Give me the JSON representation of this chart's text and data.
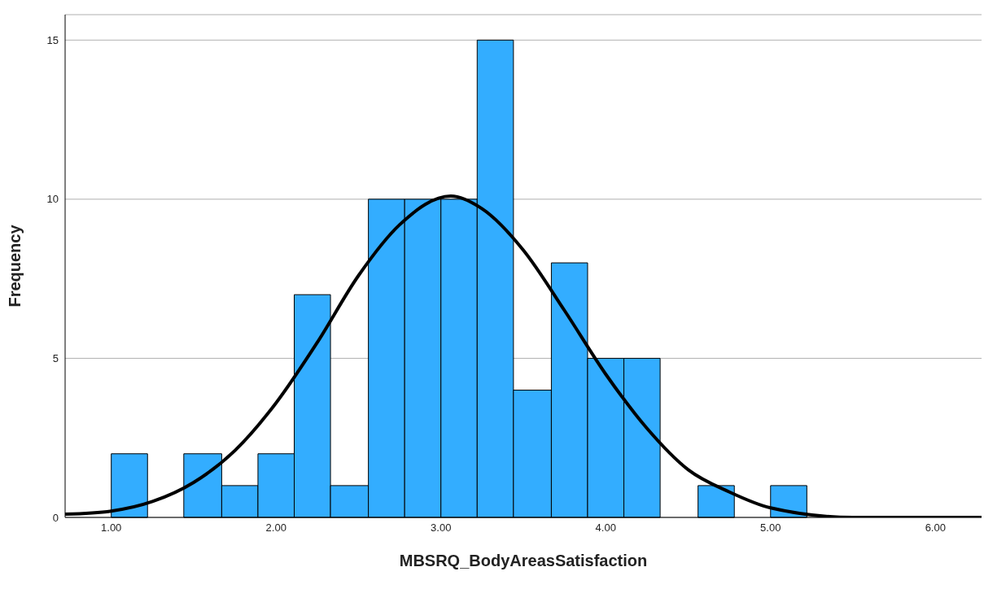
{
  "chart_data": {
    "type": "histogram",
    "xlabel": "MBSRQ_BodyAreasSatisfaction",
    "ylabel": "Frequency",
    "bins": [
      1.0,
      1.22,
      1.44,
      1.67,
      1.89,
      2.11,
      2.33,
      2.56,
      2.78,
      3.0,
      3.22,
      3.44,
      3.67,
      3.89,
      4.11,
      4.33,
      4.56,
      4.78,
      5.0,
      5.22
    ],
    "values": [
      2,
      0,
      2,
      1,
      2,
      7,
      1,
      10,
      10,
      10,
      15,
      4,
      8,
      5,
      5,
      0,
      1,
      0,
      1
    ],
    "color": "#33adff",
    "series": [
      {
        "type": "line",
        "color": "#000000",
        "x": [
          0.72,
          1.0,
          1.25,
          1.5,
          1.75,
          2.0,
          2.25,
          2.5,
          2.75,
          3.06,
          3.25,
          3.5,
          3.75,
          4.0,
          4.25,
          4.5,
          4.75,
          5.0,
          5.5,
          6.0,
          6.28
        ],
        "values": [
          0.1,
          0.2,
          0.5,
          1.1,
          2.1,
          3.6,
          5.5,
          7.6,
          9.2,
          10.1,
          9.7,
          8.4,
          6.5,
          4.5,
          2.8,
          1.5,
          0.8,
          0.3,
          0.0,
          0.0,
          0.0
        ]
      }
    ],
    "xlim": [
      0.72,
      6.28
    ],
    "xticks": [
      {
        "value": 1,
        "label": "1.00"
      },
      {
        "value": 2,
        "label": "2.00"
      },
      {
        "value": 3,
        "label": "3.00"
      },
      {
        "value": 4,
        "label": "4.00"
      },
      {
        "value": 5,
        "label": "5.00"
      },
      {
        "value": 6,
        "label": "6.00"
      }
    ],
    "ylim": [
      0,
      15.8
    ],
    "yticks": [
      0,
      5,
      10,
      15
    ],
    "grid": "y"
  }
}
